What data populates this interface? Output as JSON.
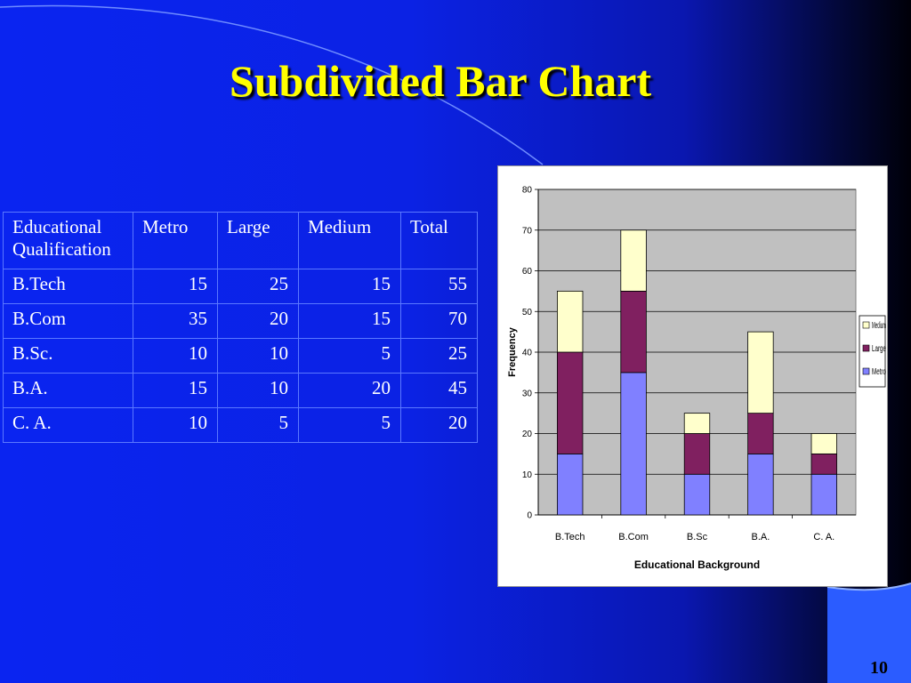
{
  "slide": {
    "title": "Subdivided Bar Chart",
    "page_number": "10",
    "colors": {
      "background": "#0a24f0",
      "title": "#ffff00",
      "table_border": "#5b78ff"
    }
  },
  "table": {
    "headers": [
      "Educational Qualification",
      "Metro",
      "Large",
      "Medium",
      "Total"
    ],
    "rows": [
      [
        "B.Tech",
        "15",
        "25",
        "15",
        "55"
      ],
      [
        "B.Com",
        "35",
        "20",
        "15",
        "70"
      ],
      [
        "B.Sc.",
        "10",
        "10",
        "5",
        "25"
      ],
      [
        "B.A.",
        "15",
        "10",
        "20",
        "45"
      ],
      [
        "C. A.",
        "10",
        "5",
        "5",
        "20"
      ]
    ]
  },
  "chart_data": {
    "type": "bar",
    "stacked": true,
    "title": "",
    "xlabel": "Educational Background",
    "ylabel": "Frequency",
    "ylim": [
      0,
      80
    ],
    "yticks": [
      0,
      10,
      20,
      30,
      40,
      50,
      60,
      70,
      80
    ],
    "grid": true,
    "legend": "right",
    "categories": [
      "B.Tech",
      "B.Com",
      "B.Sc",
      "B.A.",
      "C. A."
    ],
    "series": [
      {
        "name": "Metro",
        "values": [
          15,
          35,
          10,
          15,
          10
        ],
        "color": "#8080ff"
      },
      {
        "name": "Large",
        "values": [
          25,
          20,
          10,
          10,
          5
        ],
        "color": "#802060"
      },
      {
        "name": "Medium",
        "values": [
          15,
          15,
          5,
          20,
          5
        ],
        "color": "#ffffcc"
      }
    ],
    "legend_order": [
      "Medium",
      "Large",
      "Metro"
    ],
    "plot_background": "#c0c0c0"
  }
}
